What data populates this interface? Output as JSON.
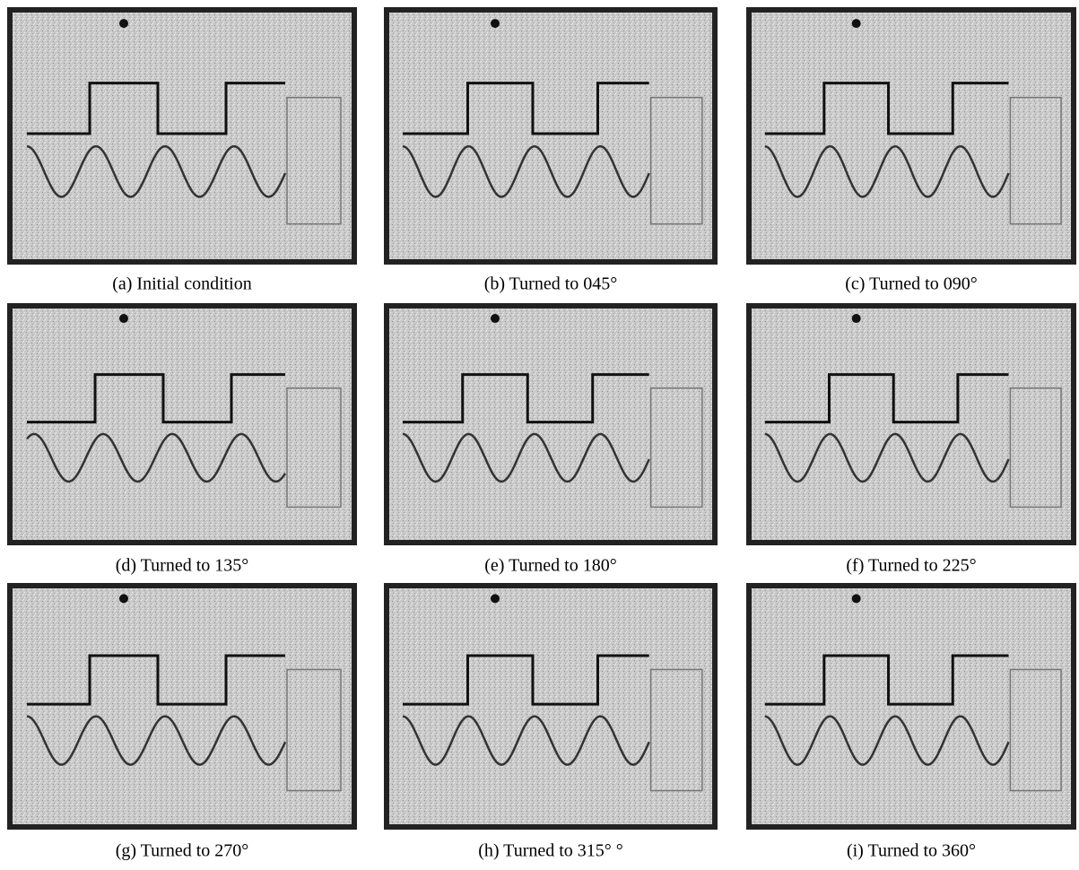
{
  "panels": [
    {
      "caption": "(a) Initial condition"
    },
    {
      "caption": "(b) Turned to 045°"
    },
    {
      "caption": "(c) Turned to 090°"
    },
    {
      "caption": "(d) Turned to 135°"
    },
    {
      "caption": "(e) Turned to 180°"
    },
    {
      "caption": "(f) Turned to 225°"
    },
    {
      "caption": "(g) Turned to 270°"
    },
    {
      "caption": "(h) Turned to 315° °"
    },
    {
      "caption": "(i) Turned to 360°"
    }
  ]
}
